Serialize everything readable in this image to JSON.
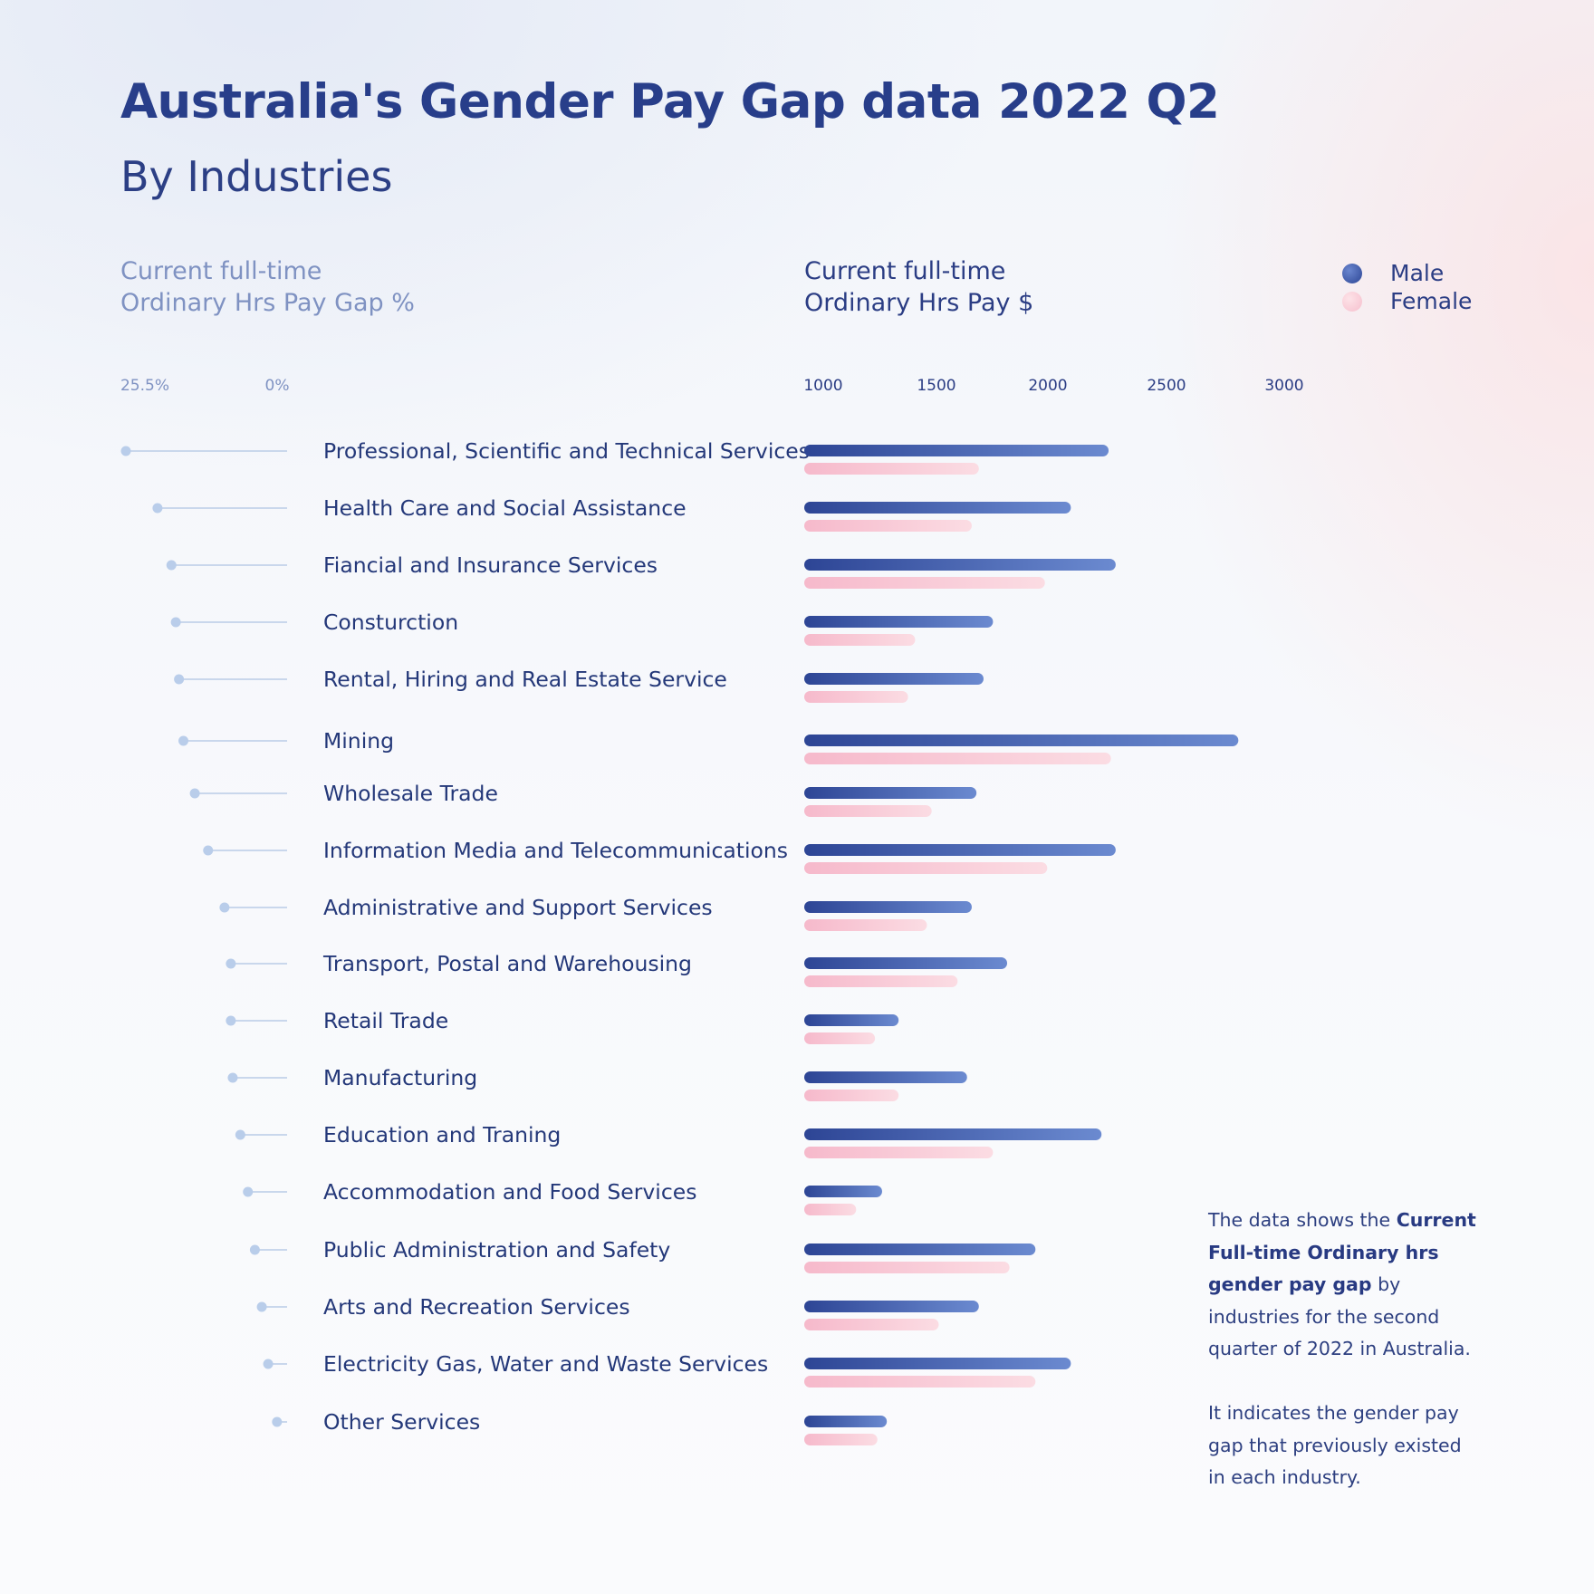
{
  "header": {
    "title": "Australia's Gender Pay Gap data 2022 Q2",
    "subtitle": "By Industries"
  },
  "left_panel": {
    "heading_line1": "Current full-time",
    "heading_line2": "Ordinary Hrs Pay Gap %"
  },
  "right_panel": {
    "heading_line1": "Current full-time",
    "heading_line2": "Ordinary Hrs Pay $"
  },
  "legend": {
    "male": "Male",
    "female": "Female"
  },
  "note": {
    "p1_pre": "The data shows the ",
    "p1_bold": "Current Full-time Ordinary hrs gender pay gap",
    "p1_post": " by industries for the second quarter of 2022 in Australia.",
    "p2": "It indicates the gender pay gap that previously existed in each industry."
  },
  "colors": {
    "male_dark": "#2d4595",
    "male_light": "#6b8ad0",
    "female_dark": "#f6b9cb",
    "female_light": "#fbdce3",
    "gap_line": "#c9d7ec",
    "gap_dot": "#b9cdea",
    "tick_left": "#7f92c2",
    "tick_right": "#2b3d84",
    "label": "#243879"
  },
  "chart_data": [
    {
      "type": "dot-line",
      "title": "Current full-time Ordinary Hrs Pay Gap %",
      "tick_labels": [
        "25.5%",
        "0%"
      ],
      "xlim": [
        25.5,
        0
      ],
      "categories": [
        "Professional, Scientific and Technical Services",
        "Health Care and Social Assistance",
        "Fiancial and Insurance Services",
        "Consturction",
        "Rental, Hiring and Real Estate Service",
        "Mining",
        "Wholesale Trade",
        "Information Media and Telecommunications",
        "Administrative and Support Services",
        "Transport, Postal and Warehousing",
        "Retail Trade",
        "Manufacturing",
        "Education and Traning",
        "Accommodation and Food Services",
        "Public Administration and Safety",
        "Arts and Recreation Services",
        "Electricity Gas, Water and Waste Services",
        "Other Services"
      ],
      "values": [
        25.5,
        20.5,
        18.3,
        17.6,
        17.1,
        16.4,
        14.6,
        12.5,
        9.9,
        8.9,
        8.9,
        8.6,
        7.4,
        6.2,
        5.1,
        4.0,
        3.0,
        1.6
      ]
    },
    {
      "type": "bar",
      "title": "Current full-time Ordinary Hrs Pay $",
      "orientation": "horizontal",
      "xticks": [
        1000,
        1500,
        2000,
        2500,
        3000
      ],
      "xlim": [
        1000,
        3000
      ],
      "categories": [
        "Professional, Scientific and Technical Services",
        "Health Care and Social Assistance",
        "Fiancial and Insurance Services",
        "Consturction",
        "Rental, Hiring and Real Estate Service",
        "Mining",
        "Wholesale Trade",
        "Information Media and Telecommunications",
        "Administrative and Support Services",
        "Transport, Postal and Warehousing",
        "Retail Trade",
        "Manufacturing",
        "Education and Traning",
        "Accommodation and Food Services",
        "Public Administration and Safety",
        "Arts and Recreation Services",
        "Electricity Gas, Water and Waste Services",
        "Other Services"
      ],
      "series": [
        {
          "name": "Male",
          "values": [
            2290,
            2130,
            2320,
            1800,
            1760,
            2840,
            1730,
            2320,
            1710,
            1860,
            1400,
            1690,
            2260,
            1330,
            1980,
            1740,
            2130,
            1350
          ]
        },
        {
          "name": "Female",
          "values": [
            1740,
            1710,
            2020,
            1470,
            1440,
            2300,
            1540,
            2030,
            1520,
            1650,
            1300,
            1400,
            1800,
            1220,
            1870,
            1570,
            1980,
            1310
          ]
        }
      ]
    }
  ]
}
